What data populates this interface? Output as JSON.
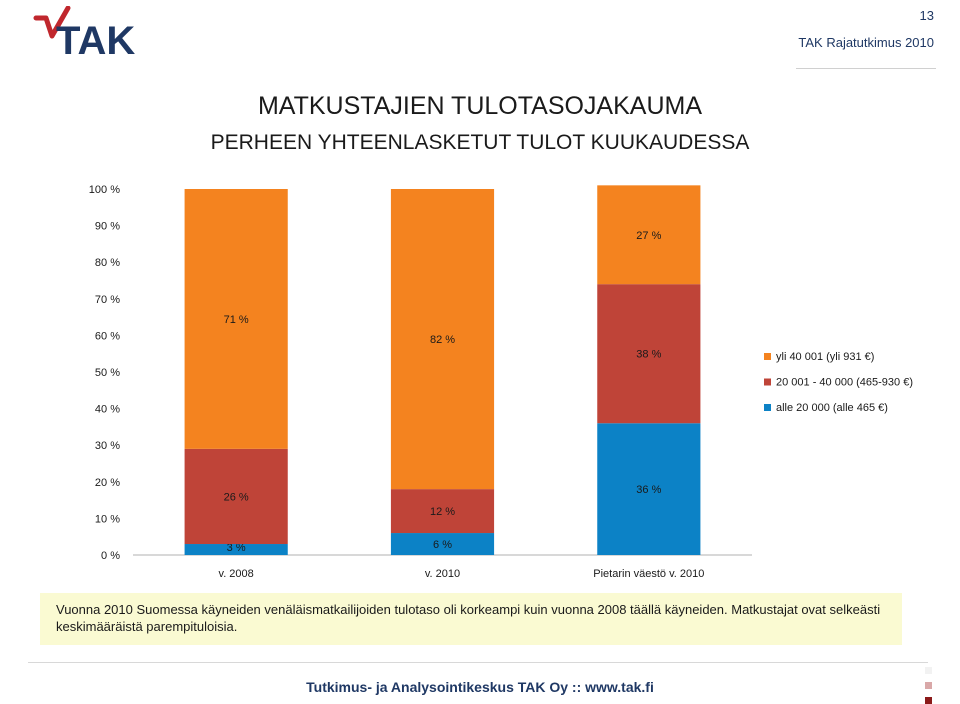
{
  "header": {
    "logo_text": "TAK",
    "page_number": "13",
    "right_text": "TAK Rajatutkimus 2010"
  },
  "title": {
    "line1": "MATKUSTAJIEN TULOTASOJAKAUMA",
    "line2": "PERHEEN YHTEENLASKETUT TULOT KUUKAUDESSA"
  },
  "chart_data": {
    "type": "bar",
    "stacked": true,
    "categories": [
      "v. 2008",
      "v. 2010",
      "Pietarin väestö v. 2010"
    ],
    "series": [
      {
        "name": "alle 20 000 (alle 465 €)",
        "values": [
          3,
          6,
          36
        ],
        "labels": [
          "3 %",
          "6 %",
          "36 %"
        ],
        "color": "#0c82c6"
      },
      {
        "name": "20 001 - 40 000 (465-930 €)",
        "values": [
          26,
          12,
          38
        ],
        "labels": [
          "26 %",
          "12 %",
          "38 %"
        ],
        "color": "#bf4438"
      },
      {
        "name": "yli 40 001  (yli 931 €)",
        "values": [
          71,
          82,
          27
        ],
        "labels": [
          "71 %",
          "82 %",
          "27 %"
        ],
        "color": "#f4831f"
      }
    ],
    "ylim": [
      0,
      100
    ],
    "yticks": [
      "0 %",
      "10 %",
      "20 %",
      "30 %",
      "40 %",
      "50 %",
      "60 %",
      "70 %",
      "80 %",
      "90 %",
      "100 %"
    ],
    "legend_order": [
      2,
      1,
      0
    ],
    "legend_position": "right",
    "grid": false
  },
  "note": {
    "text": "Vuonna 2010 Suomessa käyneiden venäläismatkailijoiden tulotaso oli korkeampi kuin vuonna 2008 täällä käyneiden. Matkustajat ovat selkeästi keskimääräistä parempituloisia."
  },
  "footer": {
    "text": "Tutkimus- ja Analysointikeskus TAK Oy  ::  www.tak.fi"
  },
  "colors": {
    "navy": "#1f3864",
    "accent_red": "#c0272d",
    "note_bg": "#fafad2"
  }
}
